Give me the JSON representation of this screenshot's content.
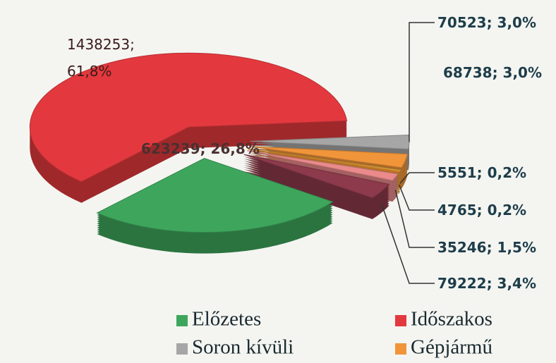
{
  "chart_data": {
    "type": "pie",
    "categories": [
      "Előzetes",
      "Időszakos",
      "Soron kívüli",
      "Gépjármű",
      null,
      null,
      null,
      null
    ],
    "values": [
      623239,
      1438253,
      70523,
      68738,
      5551,
      4765,
      35246,
      79222
    ],
    "value_labels": [
      "623239; 26,8%",
      "1438253; 61,8%",
      "70523; 3,0%",
      "68738; 3,0%",
      "5551; 0,2%",
      "4765; 0,2%",
      "35246; 1,5%",
      "79222; 3,4%"
    ],
    "colors": [
      "#3ea65c",
      "#e3393e",
      "#a6a6a6",
      "#f0953a",
      "#e8b040",
      "#f08a2a",
      "#ea8a8a",
      "#8c3a4c"
    ]
  }
}
